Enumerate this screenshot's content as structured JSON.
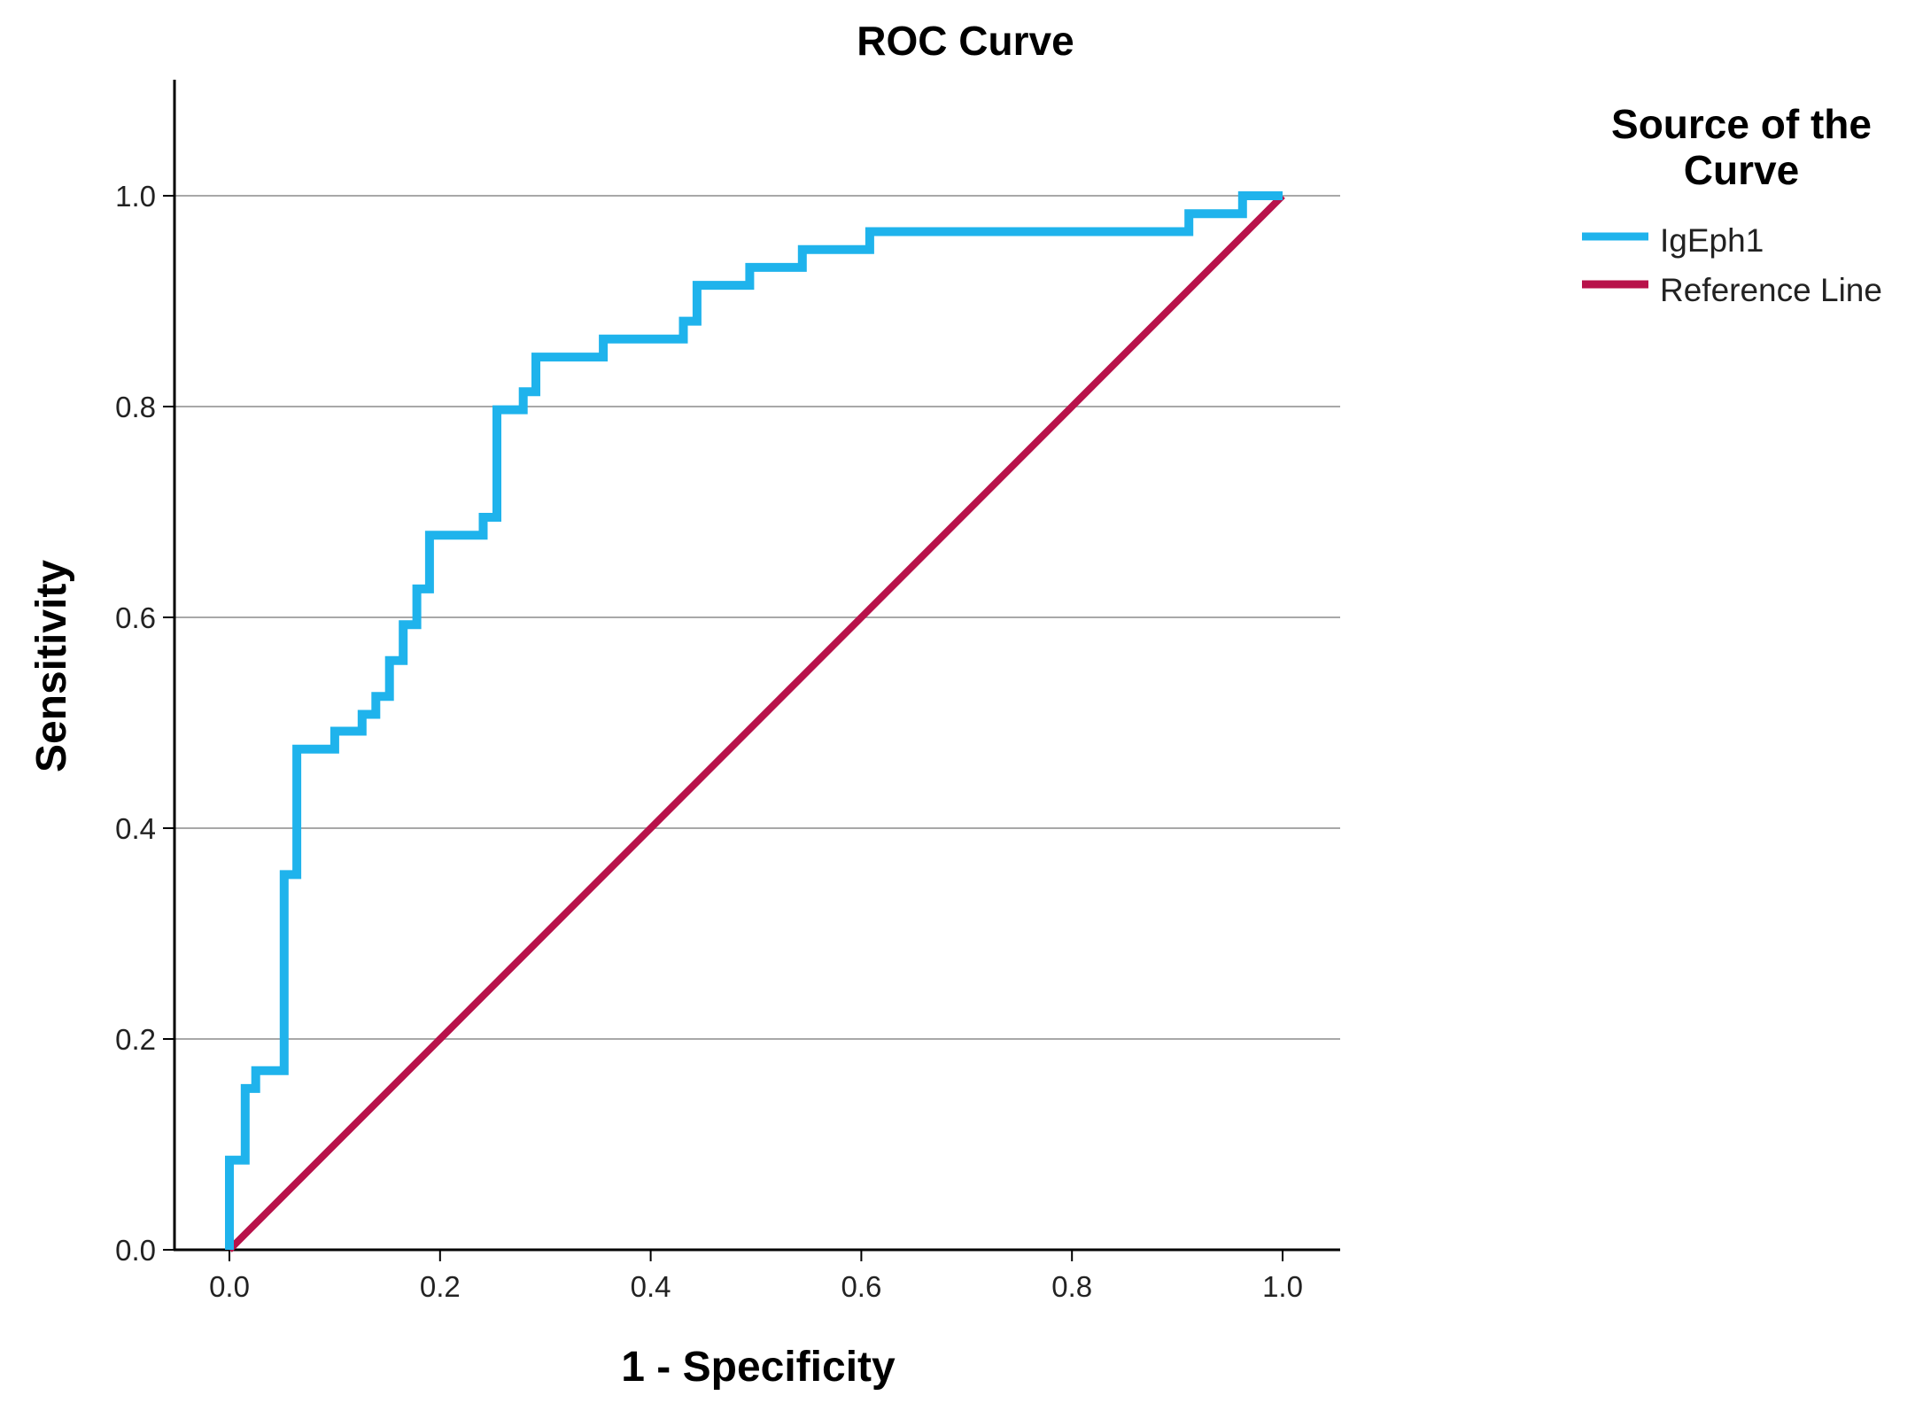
{
  "chart_data": {
    "type": "line",
    "title": "ROC Curve",
    "xlabel": "1 - Specificity",
    "ylabel": "Sensitivity",
    "xlim": [
      0,
      1.1
    ],
    "ylim": [
      0,
      1.1
    ],
    "x_ticks": [
      "0.0",
      "0.2",
      "0.4",
      "0.6",
      "0.8",
      "1.0"
    ],
    "y_ticks": [
      "0.0",
      "0.2",
      "0.4",
      "0.6",
      "0.8",
      "1.0"
    ],
    "grid": "horizontal",
    "legend": {
      "title_line1": "Source of the",
      "title_line2": "Curve",
      "position": "top-right"
    },
    "series": [
      {
        "name": "IgEph1",
        "color": "#1fb3ec",
        "points": [
          [
            0,
            0
          ],
          [
            0,
            0.085
          ],
          [
            0.015,
            0.085
          ],
          [
            0.015,
            0.153
          ],
          [
            0.025,
            0.153
          ],
          [
            0.025,
            0.17
          ],
          [
            0.052,
            0.17
          ],
          [
            0.052,
            0.356
          ],
          [
            0.064,
            0.356
          ],
          [
            0.064,
            0.475
          ],
          [
            0.1,
            0.475
          ],
          [
            0.1,
            0.492
          ],
          [
            0.126,
            0.492
          ],
          [
            0.126,
            0.508
          ],
          [
            0.139,
            0.508
          ],
          [
            0.139,
            0.525
          ],
          [
            0.152,
            0.525
          ],
          [
            0.152,
            0.559
          ],
          [
            0.165,
            0.559
          ],
          [
            0.165,
            0.593
          ],
          [
            0.178,
            0.593
          ],
          [
            0.178,
            0.627
          ],
          [
            0.19,
            0.627
          ],
          [
            0.19,
            0.678
          ],
          [
            0.241,
            0.678
          ],
          [
            0.241,
            0.695
          ],
          [
            0.254,
            0.695
          ],
          [
            0.254,
            0.797
          ],
          [
            0.279,
            0.797
          ],
          [
            0.279,
            0.814
          ],
          [
            0.291,
            0.814
          ],
          [
            0.291,
            0.847
          ],
          [
            0.355,
            0.847
          ],
          [
            0.355,
            0.864
          ],
          [
            0.431,
            0.864
          ],
          [
            0.431,
            0.881
          ],
          [
            0.444,
            0.881
          ],
          [
            0.444,
            0.915
          ],
          [
            0.494,
            0.915
          ],
          [
            0.494,
            0.932
          ],
          [
            0.544,
            0.932
          ],
          [
            0.544,
            0.949
          ],
          [
            0.608,
            0.949
          ],
          [
            0.608,
            0.966
          ],
          [
            0.911,
            0.966
          ],
          [
            0.911,
            0.983
          ],
          [
            0.962,
            0.983
          ],
          [
            0.962,
            1.0
          ],
          [
            1.0,
            1.0
          ]
        ]
      },
      {
        "name": "Reference Line",
        "color": "#b8124a",
        "points": [
          [
            0,
            0
          ],
          [
            1.0,
            1.0
          ]
        ]
      }
    ]
  }
}
